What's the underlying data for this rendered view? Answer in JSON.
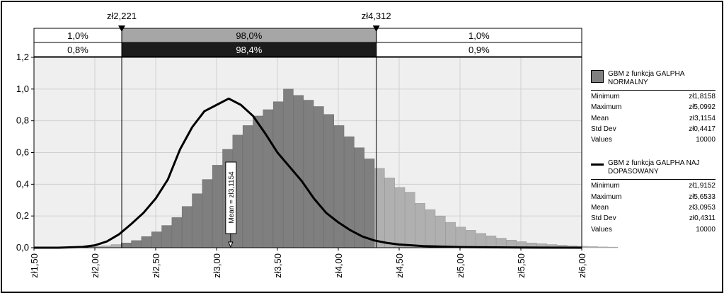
{
  "chart_data": {
    "type": "histogram",
    "markers": {
      "left_label": "zł2,221",
      "right_label": "zł4,312",
      "left_x": 2.221,
      "right_x": 4.312
    },
    "band_top": {
      "left": "1,0%",
      "middle": "98,0%",
      "right": "1,0%"
    },
    "band_bottom": {
      "left": "0,8%",
      "middle": "98,4%",
      "right": "0,9%"
    },
    "y_ticks": [
      "0,0",
      "0,2",
      "0,4",
      "0,6",
      "0,8",
      "1,0",
      "1,2"
    ],
    "ylim": [
      0,
      1.2
    ],
    "x_ticks": [
      "zł1,50",
      "zł2,00",
      "zł2,50",
      "zł3,00",
      "zł3,50",
      "zł4,00",
      "zł4,50",
      "zł5,00",
      "zł5,50",
      "zł6,00"
    ],
    "xlim": [
      1.5,
      6.0
    ],
    "bins": {
      "start": 1.8,
      "width": 0.0833,
      "values": [
        0.002,
        0.004,
        0.008,
        0.012,
        0.02,
        0.03,
        0.045,
        0.07,
        0.1,
        0.14,
        0.19,
        0.26,
        0.34,
        0.43,
        0.52,
        0.62,
        0.71,
        0.77,
        0.83,
        0.87,
        0.92,
        1.0,
        0.96,
        0.93,
        0.89,
        0.84,
        0.77,
        0.7,
        0.63,
        0.56,
        0.5,
        0.44,
        0.38,
        0.35,
        0.28,
        0.24,
        0.2,
        0.16,
        0.13,
        0.11,
        0.09,
        0.075,
        0.06,
        0.048,
        0.038,
        0.03,
        0.025,
        0.02,
        0.016,
        0.012,
        0.009,
        0.007,
        0.005,
        0.004
      ]
    },
    "fit_line": {
      "x": [
        1.5,
        1.7,
        1.9,
        2.0,
        2.1,
        2.2,
        2.3,
        2.4,
        2.5,
        2.6,
        2.7,
        2.8,
        2.9,
        3.0,
        3.1,
        3.2,
        3.3,
        3.4,
        3.5,
        3.6,
        3.7,
        3.8,
        3.9,
        4.0,
        4.1,
        4.2,
        4.3,
        4.4,
        4.5,
        4.7,
        5.0,
        5.5,
        6.0
      ],
      "y": [
        0.0,
        0.0,
        0.005,
        0.015,
        0.04,
        0.085,
        0.15,
        0.22,
        0.31,
        0.43,
        0.62,
        0.76,
        0.86,
        0.9,
        0.94,
        0.9,
        0.83,
        0.72,
        0.6,
        0.51,
        0.42,
        0.31,
        0.22,
        0.16,
        0.11,
        0.07,
        0.045,
        0.03,
        0.02,
        0.01,
        0.004,
        0.001,
        0.0
      ]
    },
    "mean_label": "Mean = zł3,1154",
    "mean_x": 3.1154
  },
  "legend": {
    "series1": {
      "name": "GBM z funkcja GALPHA NORMALNY",
      "stats": [
        {
          "label": "Minimum",
          "value": "zł1,8158"
        },
        {
          "label": "Maximum",
          "value": "zł5,0992"
        },
        {
          "label": "Mean",
          "value": "zł3,1154"
        },
        {
          "label": "Std Dev",
          "value": "zł0,4417"
        },
        {
          "label": "Values",
          "value": "10000"
        }
      ]
    },
    "series2": {
      "name": "GBM z funkcja GALPHA NAJ DOPASOWANY",
      "stats": [
        {
          "label": "Minimum",
          "value": "zł1,9152"
        },
        {
          "label": "Maximum",
          "value": "zł5,6533"
        },
        {
          "label": "Mean",
          "value": "zł3,0953"
        },
        {
          "label": "Std Dev",
          "value": "zł0,4311"
        },
        {
          "label": "Values",
          "value": "10000"
        }
      ]
    }
  },
  "colors": {
    "bar": "#7f7f7f",
    "bar_dark": "#5a5a5a",
    "band_dark": "#1c1c1c",
    "band_mid": "#a6a6a6",
    "plot_bg": "#efefef",
    "grid": "#d0d0d0"
  }
}
